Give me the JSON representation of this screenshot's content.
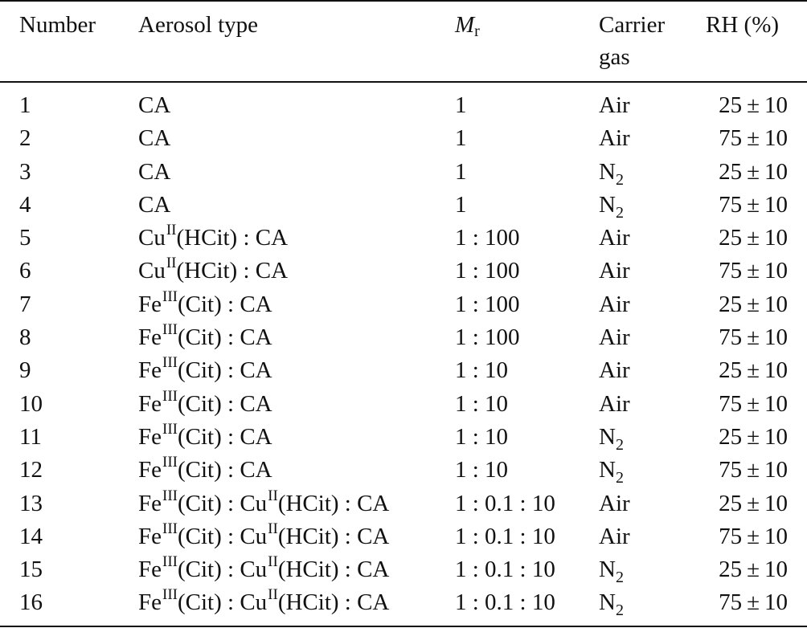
{
  "header": {
    "number": "Number",
    "aerosol_type": "Aerosol type",
    "mr_symbol": "M",
    "mr_subscript": "r",
    "carrier_line1": "Carrier",
    "carrier_line2": "gas",
    "rh": "RH (%)"
  },
  "rows": [
    {
      "number": "1",
      "type": [
        {
          "t": "CA"
        }
      ],
      "ratio": "1",
      "gas": "Air",
      "gas_sub": "",
      "rh": "25",
      "rh_err": "10"
    },
    {
      "number": "2",
      "type": [
        {
          "t": "CA"
        }
      ],
      "ratio": "1",
      "gas": "Air",
      "gas_sub": "",
      "rh": "75",
      "rh_err": "10"
    },
    {
      "number": "3",
      "type": [
        {
          "t": "CA"
        }
      ],
      "ratio": "1",
      "gas": "N",
      "gas_sub": "2",
      "rh": "25",
      "rh_err": "10"
    },
    {
      "number": "4",
      "type": [
        {
          "t": "CA"
        }
      ],
      "ratio": "1",
      "gas": "N",
      "gas_sub": "2",
      "rh": "75",
      "rh_err": "10"
    },
    {
      "number": "5",
      "type": [
        {
          "t": "Cu"
        },
        {
          "sup": "II"
        },
        {
          "t": "(HCit) : CA"
        }
      ],
      "ratio": "1 : 100",
      "gas": "Air",
      "gas_sub": "",
      "rh": "25",
      "rh_err": "10"
    },
    {
      "number": "6",
      "type": [
        {
          "t": "Cu"
        },
        {
          "sup": "II"
        },
        {
          "t": "(HCit) : CA"
        }
      ],
      "ratio": "1 : 100",
      "gas": "Air",
      "gas_sub": "",
      "rh": "75",
      "rh_err": "10"
    },
    {
      "number": "7",
      "type": [
        {
          "t": "Fe"
        },
        {
          "sup": "III"
        },
        {
          "t": "(Cit) : CA"
        }
      ],
      "ratio": "1 : 100",
      "gas": "Air",
      "gas_sub": "",
      "rh": "25",
      "rh_err": "10"
    },
    {
      "number": "8",
      "type": [
        {
          "t": "Fe"
        },
        {
          "sup": "III"
        },
        {
          "t": "(Cit) : CA"
        }
      ],
      "ratio": "1 : 100",
      "gas": "Air",
      "gas_sub": "",
      "rh": "75",
      "rh_err": "10"
    },
    {
      "number": "9",
      "type": [
        {
          "t": "Fe"
        },
        {
          "sup": "III"
        },
        {
          "t": "(Cit) : CA"
        }
      ],
      "ratio": "1 : 10",
      "gas": "Air",
      "gas_sub": "",
      "rh": "25",
      "rh_err": "10"
    },
    {
      "number": "10",
      "type": [
        {
          "t": "Fe"
        },
        {
          "sup": "III"
        },
        {
          "t": "(Cit) : CA"
        }
      ],
      "ratio": "1 : 10",
      "gas": "Air",
      "gas_sub": "",
      "rh": "75",
      "rh_err": "10"
    },
    {
      "number": "11",
      "type": [
        {
          "t": "Fe"
        },
        {
          "sup": "III"
        },
        {
          "t": "(Cit) : CA"
        }
      ],
      "ratio": "1 : 10",
      "gas": "N",
      "gas_sub": "2",
      "rh": "25",
      "rh_err": "10"
    },
    {
      "number": "12",
      "type": [
        {
          "t": "Fe"
        },
        {
          "sup": "III"
        },
        {
          "t": "(Cit) : CA"
        }
      ],
      "ratio": "1 : 10",
      "gas": "N",
      "gas_sub": "2",
      "rh": "75",
      "rh_err": "10"
    },
    {
      "number": "13",
      "type": [
        {
          "t": "Fe"
        },
        {
          "sup": "III"
        },
        {
          "t": "(Cit) : Cu"
        },
        {
          "sup": "II"
        },
        {
          "t": "(HCit) : CA"
        }
      ],
      "ratio": "1 : 0.1 : 10",
      "gas": "Air",
      "gas_sub": "",
      "rh": "25",
      "rh_err": "10"
    },
    {
      "number": "14",
      "type": [
        {
          "t": "Fe"
        },
        {
          "sup": "III"
        },
        {
          "t": "(Cit) : Cu"
        },
        {
          "sup": "II"
        },
        {
          "t": "(HCit) : CA"
        }
      ],
      "ratio": "1 : 0.1 : 10",
      "gas": "Air",
      "gas_sub": "",
      "rh": "75",
      "rh_err": "10"
    },
    {
      "number": "15",
      "type": [
        {
          "t": "Fe"
        },
        {
          "sup": "III"
        },
        {
          "t": "(Cit) : Cu"
        },
        {
          "sup": "II"
        },
        {
          "t": "(HCit) : CA"
        }
      ],
      "ratio": "1 : 0.1 : 10",
      "gas": "N",
      "gas_sub": "2",
      "rh": "25",
      "rh_err": "10"
    },
    {
      "number": "16",
      "type": [
        {
          "t": "Fe"
        },
        {
          "sup": "III"
        },
        {
          "t": "(Cit) : Cu"
        },
        {
          "sup": "II"
        },
        {
          "t": "(HCit) : CA"
        }
      ],
      "ratio": "1 : 0.1 : 10",
      "gas": "N",
      "gas_sub": "2",
      "rh": "75",
      "rh_err": "10"
    }
  ],
  "symbols": {
    "plus_minus": "±"
  }
}
